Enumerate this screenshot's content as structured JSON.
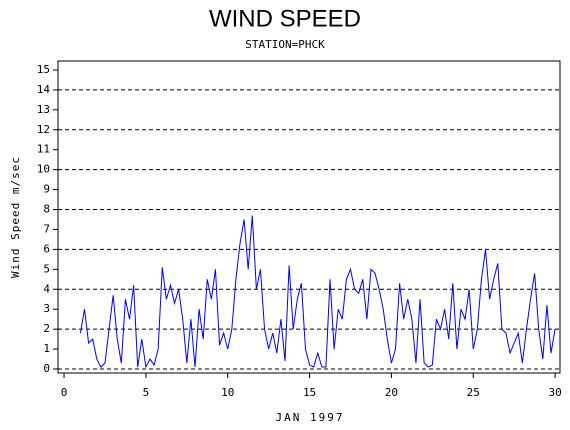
{
  "chart_data": {
    "type": "line",
    "title": "WIND SPEED",
    "subtitle": "STATION=PHCK",
    "x_label": "JAN 1997",
    "y_label": "Wind Speed m/sec",
    "xlim": [
      -0.37,
      30.3
    ],
    "ylim": [
      -0.2,
      15.45
    ],
    "xticks": [
      0,
      5,
      10,
      15,
      20,
      25,
      30
    ],
    "yticks": [
      0,
      1,
      2,
      3,
      4,
      5,
      6,
      7,
      8,
      9,
      10,
      11,
      12,
      13,
      14,
      15
    ],
    "grid": {
      "lines": [
        0,
        2,
        4,
        6,
        8,
        10,
        12,
        14
      ]
    },
    "x": [
      1,
      1.25,
      1.5,
      1.75,
      2,
      2.25,
      2.5,
      2.75,
      3,
      3.25,
      3.5,
      3.75,
      4,
      4.25,
      4.5,
      4.75,
      5,
      5.25,
      5.5,
      5.75,
      6,
      6.25,
      6.5,
      6.75,
      7,
      7.25,
      7.5,
      7.75,
      8,
      8.25,
      8.5,
      8.75,
      9,
      9.25,
      9.5,
      9.75,
      10,
      10.25,
      10.5,
      10.75,
      11,
      11.25,
      11.5,
      11.75,
      12,
      12.25,
      12.5,
      12.75,
      13,
      13.25,
      13.5,
      13.75,
      14,
      14.25,
      14.5,
      14.75,
      15,
      15.25,
      15.5,
      15.75,
      16,
      16.25,
      16.5,
      16.75,
      17,
      17.25,
      17.5,
      17.75,
      18,
      18.25,
      18.5,
      18.75,
      19,
      19.25,
      19.5,
      19.75,
      20,
      20.25,
      20.5,
      20.75,
      21,
      21.25,
      21.5,
      21.75,
      22,
      22.25,
      22.5,
      22.75,
      23,
      23.25,
      23.5,
      23.75,
      24,
      24.25,
      24.5,
      24.75,
      25,
      25.25,
      25.5,
      25.75,
      26,
      26.25,
      26.5,
      26.75,
      27,
      27.25,
      27.5,
      27.75,
      28,
      28.25,
      28.5,
      28.75,
      29,
      29.25,
      29.5,
      29.75,
      30
    ],
    "series": [
      {
        "name": "Wind Speed",
        "color": "#0000ff",
        "values": [
          1.8,
          3.0,
          1.3,
          1.5,
          0.5,
          0.1,
          0.3,
          2.0,
          3.7,
          1.5,
          0.3,
          3.5,
          2.5,
          4.2,
          0.1,
          1.5,
          0.1,
          0.5,
          0.2,
          1.0,
          5.1,
          3.5,
          4.2,
          3.3,
          4.0,
          2.5,
          0.3,
          2.5,
          0.1,
          3.0,
          1.5,
          4.5,
          3.5,
          5.0,
          1.2,
          1.8,
          1.0,
          2.0,
          4.5,
          6.3,
          7.5,
          5.0,
          7.7,
          4.0,
          5.0,
          2.0,
          1.0,
          1.8,
          0.8,
          2.5,
          0.4,
          5.2,
          2.0,
          3.5,
          4.3,
          1.0,
          0.2,
          0.1,
          0.8,
          0.1,
          0.1,
          4.5,
          1.0,
          3.0,
          2.5,
          4.5,
          5.0,
          4.0,
          3.8,
          4.5,
          2.5,
          5.0,
          4.8,
          4.0,
          3.0,
          1.5,
          0.3,
          1.0,
          4.3,
          2.5,
          3.5,
          2.5,
          0.3,
          3.5,
          0.3,
          0.1,
          0.2,
          2.5,
          2.0,
          3.0,
          1.5,
          4.3,
          1.0,
          3.0,
          2.5,
          4.0,
          1.0,
          2.0,
          4.5,
          6.0,
          3.5,
          4.5,
          5.3,
          2.0,
          1.8,
          0.8,
          1.3,
          1.8,
          0.3,
          2.0,
          3.5,
          4.8,
          2.0,
          0.5,
          3.2,
          0.8,
          2.0
        ]
      }
    ]
  }
}
